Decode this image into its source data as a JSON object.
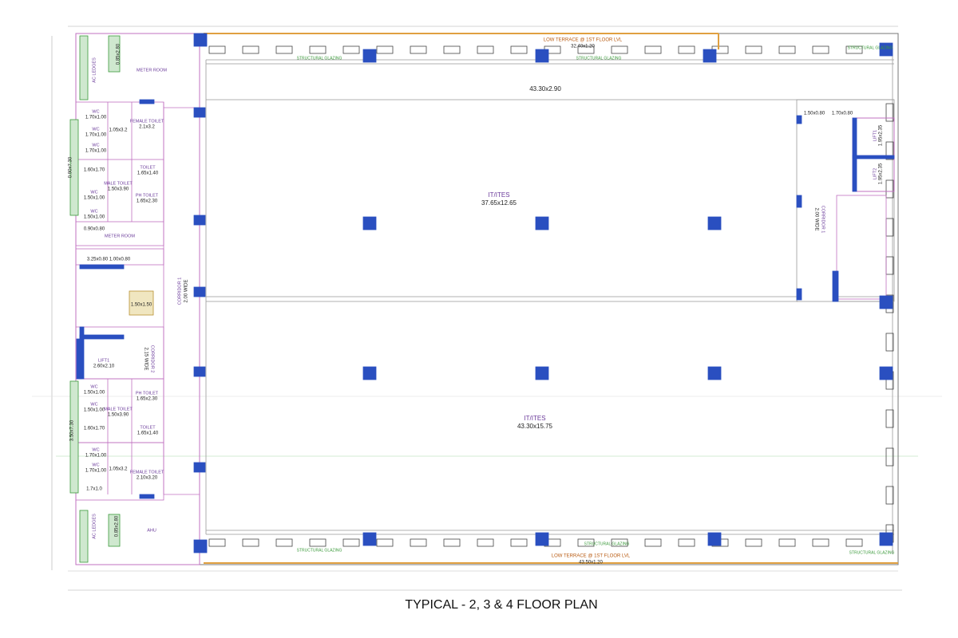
{
  "title": "TYPICAL - 2, 3 & 4 FLOOR PLAN",
  "terraces": [
    {
      "label": "LOW TERRACE @ 1ST FLOOR LVL",
      "size": "32.40x1.20"
    },
    {
      "label": "LOW TERRACE @ 1ST FLOOR LVL",
      "size": "43.50x1.20"
    }
  ],
  "office": [
    {
      "size": "43.30x2.90"
    },
    {
      "label": "IT/ITES",
      "size": "37.65x12.65"
    },
    {
      "label": "IT/ITES",
      "size": "43.30x15.75"
    }
  ],
  "glazing": [
    "STRUCTURAL GLAZING",
    "STRUCTURAL GLAZING",
    "STRUCTURAL GLAZING",
    "STRUCTURAL GLAZING",
    "STRUCTURAL GLAZING",
    "STRUCTURAL GLAZING"
  ],
  "corridors": [
    {
      "name": "CORRIDOR 1",
      "width": "2.00 WIDE"
    },
    {
      "name": "CORRIDOR 2",
      "width": "2.15 WIDE"
    },
    {
      "name": "CORRIDOR 1",
      "width": "2.00 WIDE"
    }
  ],
  "rooms": [
    {
      "name": "METER ROOM"
    },
    {
      "name": "AC LEDGES"
    },
    {
      "size": "0.85x2.80"
    },
    {
      "name": "WC",
      "size": "1.70x1.00"
    },
    {
      "name": "WC",
      "size": "1.70x1.00"
    },
    {
      "name": "WC",
      "size": "1.70x1.00"
    },
    {
      "name": "FEMALE TOILET",
      "size": "2.1x3.2"
    },
    {
      "size": "1.05x3.2"
    },
    {
      "size": "1.60x1.70"
    },
    {
      "name": "MALE TOILET",
      "size": "1.50x3.90"
    },
    {
      "name": "TOILET",
      "size": "1.65x1.40"
    },
    {
      "name": "PH TOILET",
      "size": "1.65x2.30"
    },
    {
      "name": "WC",
      "size": "1.50x1.00"
    },
    {
      "name": "WC",
      "size": "1.50x1.00"
    },
    {
      "size": "0.90x0.80"
    },
    {
      "name": "METER ROOM"
    },
    {
      "size": "3.25x0.80"
    },
    {
      "size": "1.00x0.80"
    },
    {
      "size": "1.50x1.50"
    },
    {
      "name": "LIFT1",
      "size": "2.60x2.10"
    },
    {
      "name": "WC",
      "size": "1.50x1.00"
    },
    {
      "name": "WC",
      "size": "1.50x1.00"
    },
    {
      "name": "PH TOILET",
      "size": "1.65x2.30"
    },
    {
      "name": "MALE TOILET",
      "size": "1.50x3.90"
    },
    {
      "size": "1.60x1.70"
    },
    {
      "name": "TOILET",
      "size": "1.65x1.40"
    },
    {
      "name": "WC",
      "size": "1.70x1.00"
    },
    {
      "name": "WC",
      "size": "1.70x1.00"
    },
    {
      "size": "1.05x3.2"
    },
    {
      "name": "FEMALE TOILET",
      "size": "2.10x3.20"
    },
    {
      "size": "1.7x1.0"
    },
    {
      "name": "AC LEDGES"
    },
    {
      "size": "0.85x2.80"
    },
    {
      "name": "AHU"
    },
    {
      "name": "LIFT1",
      "size": "1.95x2.35"
    },
    {
      "name": "LIFT2",
      "size": "1.95x2.35"
    },
    {
      "size": "1.50x0.80"
    },
    {
      "size": "1.70x0.80"
    },
    {
      "size": "0.90x7.30"
    },
    {
      "size": "3.50x7.30"
    }
  ]
}
